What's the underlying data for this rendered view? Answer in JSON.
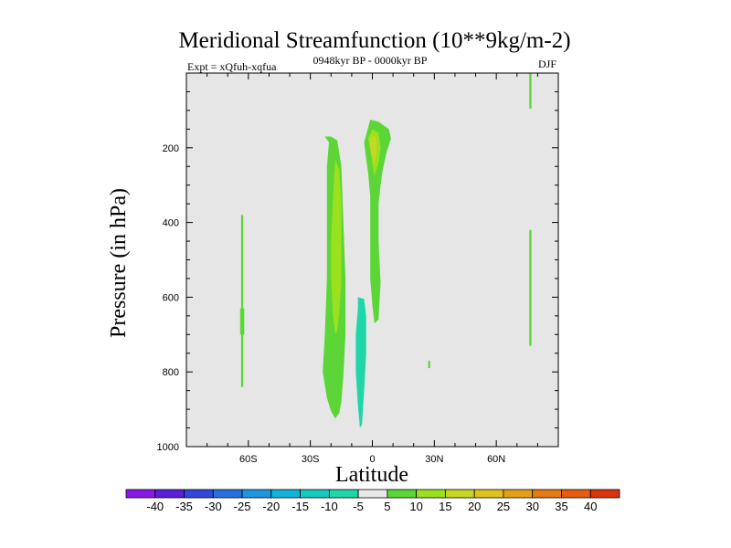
{
  "chart_data": {
    "type": "contour",
    "title": "Meridional Streamfunction (10**9kg/m-2)",
    "subtitle_left": "Expt = xQfuh-xqfua",
    "subtitle_center": "0948kyr BP - 0000kyr BP",
    "subtitle_right": "DJF",
    "xlabel": "Latitude",
    "ylabel": "Pressure (in hPa)",
    "xlim": [
      -90,
      90
    ],
    "ylim": [
      1000,
      0
    ],
    "x_ticks": [
      {
        "value": -60,
        "label": "60S"
      },
      {
        "value": -30,
        "label": "30S"
      },
      {
        "value": 0,
        "label": "0"
      },
      {
        "value": 30,
        "label": "30N"
      },
      {
        "value": 60,
        "label": "60N"
      }
    ],
    "y_ticks": [
      {
        "value": 200,
        "label": "200"
      },
      {
        "value": 400,
        "label": "400"
      },
      {
        "value": 600,
        "label": "600"
      },
      {
        "value": 800,
        "label": "800"
      },
      {
        "value": 1000,
        "label": "1000"
      }
    ],
    "background_color": "#e6e6e6",
    "contour_levels": [
      "-40",
      "-35",
      "-30",
      "-25",
      "-20",
      "-15",
      "-10",
      "-5",
      "5",
      "10",
      "15",
      "20",
      "25",
      "30",
      "35",
      "40"
    ],
    "colorbar_colors": [
      "#8a19e6",
      "#5a1fd9",
      "#3347db",
      "#2a6fe0",
      "#1f96e0",
      "#13b3d8",
      "#13c9c0",
      "#1ed6a8",
      "#e8e8e8",
      "#5bd636",
      "#9be11e",
      "#c8d624",
      "#e0c21c",
      "#e4a018",
      "#e47b14",
      "#e65c10",
      "#d9340d"
    ],
    "regions": [
      {
        "name": "positive-cell-southern",
        "level": 5,
        "color": "#5bd636",
        "polygon": [
          [
            -23,
            170
          ],
          [
            -20,
            170
          ],
          [
            -17,
            180
          ],
          [
            -15,
            250
          ],
          [
            -14,
            400
          ],
          [
            -13,
            550
          ],
          [
            -13,
            700
          ],
          [
            -14,
            810
          ],
          [
            -15,
            880
          ],
          [
            -16,
            910
          ],
          [
            -18,
            925
          ],
          [
            -20,
            905
          ],
          [
            -22,
            870
          ],
          [
            -24,
            800
          ],
          [
            -23,
            700
          ],
          [
            -22,
            550
          ],
          [
            -22,
            400
          ],
          [
            -22,
            250
          ],
          [
            -21,
            185
          ]
        ]
      },
      {
        "name": "positive-core-southern",
        "level": 10,
        "color": "#9be11e",
        "polygon": [
          [
            -18,
            230
          ],
          [
            -16,
            260
          ],
          [
            -15,
            350
          ],
          [
            -15,
            450
          ],
          [
            -15,
            560
          ],
          [
            -16,
            640
          ],
          [
            -17,
            690
          ],
          [
            -18,
            700
          ],
          [
            -19,
            650
          ],
          [
            -20,
            550
          ],
          [
            -20,
            450
          ],
          [
            -19,
            330
          ]
        ]
      },
      {
        "name": "positive-cell-equatorial",
        "level": 5,
        "color": "#5bd636",
        "polygon": [
          [
            -4,
            185
          ],
          [
            -1,
            125
          ],
          [
            3,
            130
          ],
          [
            8,
            150
          ],
          [
            9,
            175
          ],
          [
            7,
            210
          ],
          [
            5,
            260
          ],
          [
            4,
            300
          ],
          [
            3,
            350
          ],
          [
            3,
            450
          ],
          [
            4,
            560
          ],
          [
            3,
            660
          ],
          [
            1,
            670
          ],
          [
            0,
            620
          ],
          [
            -1,
            550
          ],
          [
            -1,
            450
          ],
          [
            -1,
            400
          ],
          [
            -1,
            330
          ],
          [
            -2,
            270
          ],
          [
            -3,
            230
          ]
        ]
      },
      {
        "name": "positive-core-equatorial",
        "level": 10,
        "color": "#9be11e",
        "polygon": [
          [
            -2,
            175
          ],
          [
            0,
            150
          ],
          [
            3,
            160
          ],
          [
            4,
            200
          ],
          [
            3,
            240
          ],
          [
            1,
            275
          ],
          [
            0,
            245
          ],
          [
            -1,
            205
          ]
        ]
      },
      {
        "name": "positive-core-equatorial-inner",
        "level": 15,
        "color": "#c8d624",
        "polygon": [
          [
            -1,
            185
          ],
          [
            0,
            165
          ],
          [
            2,
            175
          ],
          [
            2,
            210
          ],
          [
            1,
            240
          ],
          [
            0,
            225
          ],
          [
            -1,
            205
          ]
        ]
      },
      {
        "name": "negative-cell-equatorial",
        "level": -5,
        "color": "#1ed6a8",
        "polygon": [
          [
            -7,
            600
          ],
          [
            -4,
            605
          ],
          [
            -3,
            650
          ],
          [
            -3,
            750
          ],
          [
            -4,
            850
          ],
          [
            -5,
            940
          ],
          [
            -6,
            950
          ],
          [
            -7,
            890
          ],
          [
            -8,
            800
          ],
          [
            -8,
            700
          ],
          [
            -7,
            630
          ]
        ]
      },
      {
        "name": "positive-strip-60S",
        "level": 5,
        "color": "#5bd636",
        "polygon": [
          [
            -63.5,
            380
          ],
          [
            -62.5,
            380
          ],
          [
            -62.5,
            840
          ],
          [
            -63.5,
            840
          ]
        ]
      },
      {
        "name": "positive-strip-60S-bulge",
        "level": 5,
        "color": "#5bd636",
        "polygon": [
          [
            -64,
            630
          ],
          [
            -62,
            630
          ],
          [
            -62,
            700
          ],
          [
            -64,
            700
          ]
        ]
      },
      {
        "name": "positive-strip-75N-top",
        "level": 5,
        "color": "#5bd636",
        "polygon": [
          [
            76,
            0
          ],
          [
            77,
            0
          ],
          [
            77,
            95
          ],
          [
            76,
            95
          ]
        ]
      },
      {
        "name": "positive-strip-75N-bottom",
        "level": 5,
        "color": "#5bd636",
        "polygon": [
          [
            76,
            420
          ],
          [
            77,
            420
          ],
          [
            77,
            730
          ],
          [
            76,
            730
          ]
        ]
      },
      {
        "name": "positive-blob-27N",
        "level": 5,
        "color": "#5bd636",
        "polygon": [
          [
            27,
            770
          ],
          [
            28,
            770
          ],
          [
            28,
            790
          ],
          [
            27,
            790
          ]
        ]
      }
    ]
  }
}
